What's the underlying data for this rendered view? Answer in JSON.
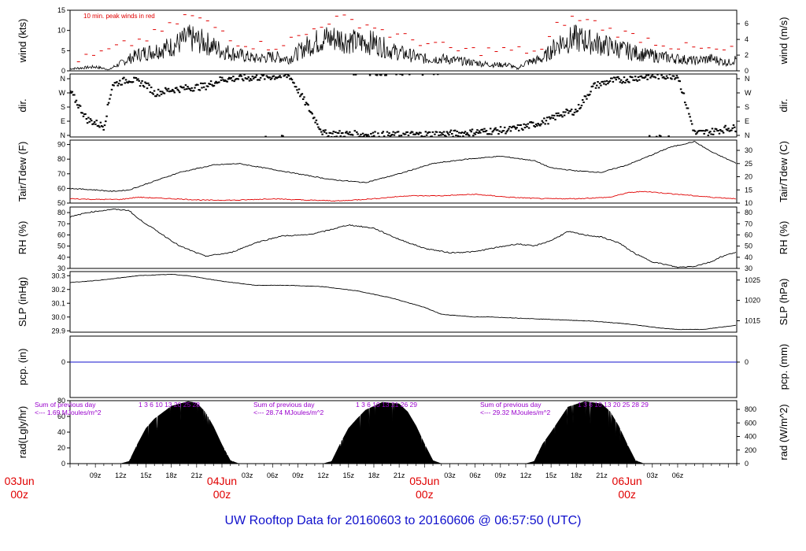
{
  "title": "UW Rooftop Data for 20160603  to  20160606 @ 06:57:50  (UTC)",
  "colors": {
    "accent": "#1010cc",
    "peak": "#e00000",
    "dewpoint": "#e00000",
    "precip": "#1010cc",
    "annotation": "#9900cc",
    "data": "#000000"
  },
  "chart_data": [
    {
      "type": "line",
      "id": "wind",
      "ylabel_left": "wind (kts)",
      "ylabel_right": "wind (m/s)",
      "yticks_left": [
        "0",
        "5",
        "10",
        "15"
      ],
      "yticks_right": [
        "0",
        "2",
        "4",
        "6"
      ],
      "ylim": [
        0,
        15
      ],
      "annotation": "10 min. peak winds in red",
      "series": [
        {
          "name": "wind",
          "x": [
            0,
            3,
            4.7,
            5,
            8,
            10,
            12,
            14,
            16,
            18,
            20,
            22,
            24,
            26,
            28,
            30,
            32,
            34,
            36,
            38,
            40,
            42,
            44,
            46,
            48,
            50,
            52,
            53,
            54,
            56,
            58,
            60,
            62,
            64,
            66,
            68,
            70,
            72,
            74,
            76,
            78,
            79
          ],
          "values": [
            0.5,
            1,
            0.3,
            0.8,
            4,
            5,
            6,
            8,
            7,
            5,
            4,
            3,
            3.5,
            3,
            6,
            8,
            8,
            7,
            7,
            5,
            4,
            3,
            3,
            2.5,
            2,
            1.5,
            1.5,
            0.5,
            2,
            3,
            7,
            8,
            7,
            6,
            5,
            4,
            3.5,
            3,
            2.5,
            3,
            2,
            3
          ]
        },
        {
          "name": "10 min. peak winds",
          "x": [
            2,
            6,
            9,
            12,
            14,
            16,
            18,
            20,
            24,
            28,
            30,
            32,
            34,
            36,
            38,
            42,
            46,
            56,
            58,
            60,
            62,
            64,
            66,
            68,
            72,
            76
          ],
          "values": [
            3,
            6,
            8,
            11,
            14,
            12,
            10,
            7,
            6,
            9,
            12,
            13,
            12,
            11,
            9,
            7,
            5,
            5,
            12,
            13,
            12,
            10,
            9,
            8,
            6,
            5
          ]
        }
      ]
    },
    {
      "type": "scatter",
      "id": "dir",
      "ylabel_left": "dir.",
      "ylabel_right": "dir.",
      "yticks_left": [
        "N",
        "E",
        "S",
        "W",
        "N"
      ],
      "yticks_right": [
        "N",
        "E",
        "S",
        "W",
        "N"
      ],
      "ylim": [
        0,
        360
      ],
      "series": [
        {
          "name": "direction",
          "x": [
            0,
            2,
            4,
            5,
            7,
            9,
            10,
            12,
            14,
            16,
            18,
            22,
            26,
            30,
            34,
            38,
            42,
            46,
            50,
            52,
            54,
            57,
            58,
            60,
            62,
            64,
            66,
            68,
            70,
            72,
            74,
            76,
            78
          ],
          "values": [
            260,
            100,
            60,
            300,
            330,
            300,
            250,
            270,
            280,
            290,
            330,
            340,
            350,
            20,
            15,
            10,
            15,
            20,
            35,
            40,
            60,
            100,
            130,
            150,
            290,
            320,
            330,
            345,
            350,
            350,
            20,
            30,
            50
          ]
        }
      ]
    },
    {
      "type": "line",
      "id": "temp",
      "ylabel_left": "Tair/Tdew (F)",
      "ylabel_right": "Tair/Tdew (C)",
      "yticks_left": [
        "50",
        "60",
        "70",
        "80",
        "90"
      ],
      "yticks_right": [
        "10",
        "15",
        "20",
        "25",
        "30"
      ],
      "ylim": [
        50,
        93
      ],
      "series": [
        {
          "name": "Tair",
          "x": [
            0,
            3,
            5,
            7,
            10,
            13,
            17,
            20,
            24,
            28,
            31,
            35,
            39,
            43,
            47,
            51,
            55,
            57,
            60,
            63,
            66,
            69,
            71,
            74,
            76,
            79
          ],
          "values": [
            60,
            59,
            58,
            59,
            65,
            71,
            76,
            77,
            73,
            69,
            66,
            64,
            70,
            77,
            80,
            82,
            79,
            74,
            72,
            71,
            76,
            83,
            88,
            92,
            85,
            77
          ]
        },
        {
          "name": "Tdew",
          "x": [
            0,
            3,
            6,
            8,
            12,
            16,
            20,
            24,
            28,
            32,
            36,
            40,
            44,
            48,
            52,
            56,
            60,
            64,
            66,
            68,
            70,
            72,
            74,
            76,
            79
          ],
          "values": [
            53,
            52.5,
            52.5,
            54,
            53,
            52,
            52,
            53,
            52,
            51.5,
            53,
            55,
            55,
            56,
            54,
            53,
            53,
            54,
            57,
            58,
            57,
            56,
            55,
            54,
            53
          ]
        }
      ]
    },
    {
      "type": "line",
      "id": "rh",
      "ylabel_left": "RH (%)",
      "ylabel_right": "RH (%)",
      "yticks_left": [
        "30",
        "40",
        "50",
        "60",
        "70",
        "80"
      ],
      "yticks_right": [
        "30",
        "40",
        "50",
        "60",
        "70",
        "80"
      ],
      "ylim": [
        30,
        85
      ],
      "series": [
        {
          "name": "RH",
          "x": [
            0,
            2,
            5,
            7,
            8,
            10,
            13,
            16,
            19,
            22,
            25,
            28,
            30,
            33,
            36,
            39,
            42,
            45,
            48,
            50,
            53,
            55,
            57,
            59,
            61,
            63,
            65,
            67,
            69,
            72,
            74,
            76,
            77,
            79
          ],
          "values": [
            76,
            80,
            83,
            82,
            75,
            65,
            50,
            41,
            44,
            53,
            59,
            60,
            63,
            69,
            66,
            56,
            48,
            44,
            45,
            48,
            52,
            50,
            55,
            63,
            60,
            58,
            53,
            43,
            36,
            31,
            32,
            36,
            40,
            45
          ]
        }
      ]
    },
    {
      "type": "line",
      "id": "slp",
      "ylabel_left": "SLP (inHg)",
      "ylabel_right": "SLP (hPa)",
      "yticks_left": [
        "29.9",
        "30.0",
        "30.1",
        "30.2",
        "30.3"
      ],
      "yticks_right": [
        "1015",
        "1020",
        "1025"
      ],
      "ylim": [
        29.89,
        30.33
      ],
      "series": [
        {
          "name": "SLP",
          "x": [
            0,
            4,
            8,
            12,
            14,
            18,
            22,
            26,
            30,
            34,
            38,
            42,
            44,
            48,
            50,
            54,
            58,
            62,
            66,
            70,
            72,
            75,
            79
          ],
          "values": [
            30.25,
            30.27,
            30.3,
            30.31,
            30.3,
            30.26,
            30.23,
            30.23,
            30.22,
            30.19,
            30.14,
            30.07,
            30.02,
            30.0,
            30.0,
            29.99,
            29.98,
            29.97,
            29.95,
            29.92,
            29.91,
            29.91,
            29.94
          ]
        }
      ]
    },
    {
      "type": "line",
      "id": "pcp",
      "ylabel_left": "pcp. (in)",
      "ylabel_right": "pcp. (mm)",
      "yticks_left": [
        "0"
      ],
      "yticks_right": [
        "0"
      ],
      "ylim": [
        -0.5,
        0.5
      ],
      "series": [
        {
          "name": "precipitation",
          "x": [
            0,
            79
          ],
          "values": [
            0,
            0
          ]
        }
      ]
    },
    {
      "type": "area",
      "id": "rad",
      "ylabel_left": "rad(Lgly/hr)",
      "ylabel_right": "rad (W/m^2)",
      "yticks_left": [
        "0",
        "20",
        "40",
        "60",
        "80"
      ],
      "yticks_right": [
        "0",
        "200",
        "400",
        "600",
        "800"
      ],
      "ylim": [
        0,
        80
      ],
      "annotations": [
        {
          "line1": "Sum of previous day",
          "line2": "<--- 1.69 MJoules/m^2",
          "days": "1  3  6 10 13 20 25 28"
        },
        {
          "line1": "Sum of previous day",
          "line2": "<--- 28.74 MJoules/m^2",
          "days": "1  3  6 10 13 21 26 29"
        },
        {
          "line1": "Sum of previous day",
          "line2": "<--- 29.32 MJoules/m^2",
          "days": "1  3  6 10 13 20 25 28 29"
        }
      ],
      "series": [
        {
          "name": "radiation",
          "x": [
            6,
            7,
            8,
            9,
            10,
            12,
            14,
            15,
            16,
            17,
            18,
            19,
            20,
            30,
            31,
            32,
            33,
            34,
            35,
            37,
            39,
            40,
            41,
            42,
            43,
            44,
            54,
            55,
            56,
            57,
            58,
            59,
            61,
            63,
            64,
            65,
            66,
            67,
            68
          ],
          "values": [
            0,
            3,
            25,
            45,
            57,
            73,
            79,
            77,
            66,
            47,
            24,
            4,
            0,
            0,
            3,
            25,
            45,
            57,
            68,
            78,
            76,
            66,
            48,
            25,
            4,
            0,
            0,
            3,
            25,
            40,
            56,
            72,
            79,
            76,
            66,
            48,
            25,
            4,
            0
          ]
        }
      ]
    }
  ],
  "x_axis": {
    "hour_ticks": [
      "09z",
      "12z",
      "15z",
      "18z",
      "21z",
      "03z",
      "06z",
      "09z",
      "12z",
      "15z",
      "18z",
      "21z",
      "03z",
      "06z",
      "09z",
      "12z",
      "15z",
      "18z",
      "21z",
      "03z",
      "06z"
    ],
    "date_labels": [
      {
        "day": "03Jun",
        "hour": "00z"
      },
      {
        "day": "04Jun",
        "hour": "00z"
      },
      {
        "day": "05Jun",
        "hour": "00z"
      },
      {
        "day": "06Jun",
        "hour": "00z"
      }
    ]
  }
}
